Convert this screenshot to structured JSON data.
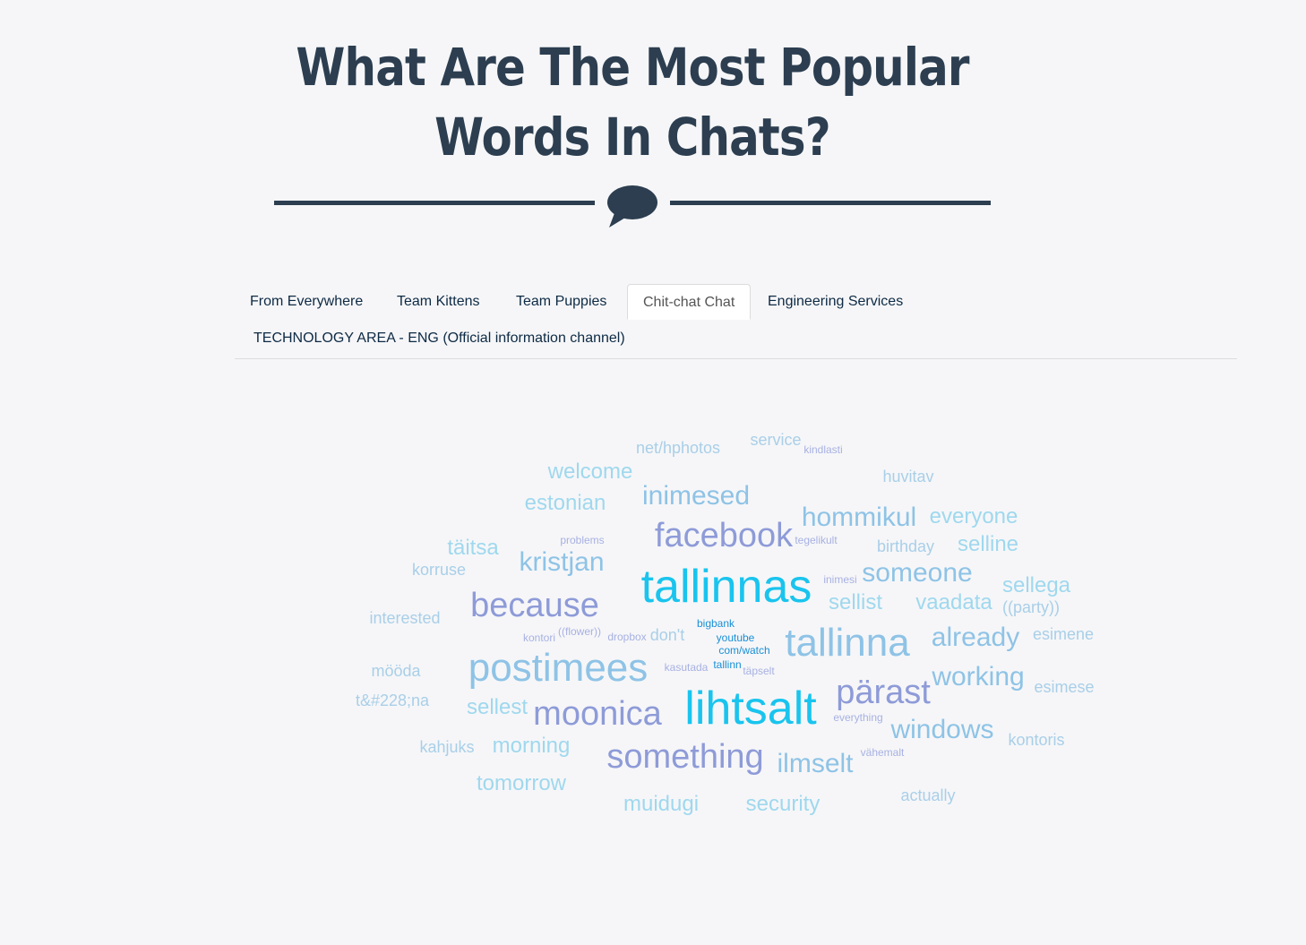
{
  "header": {
    "title_line1": "What Are The Most Popular",
    "title_line2": "Words In Chats?",
    "divider_icon": "speech-bubble-icon",
    "accent_color": "#2c3e50"
  },
  "tabs": [
    {
      "label": "From Everywhere",
      "active": false
    },
    {
      "label": "Team Kittens",
      "active": false
    },
    {
      "label": "Team Puppies",
      "active": false
    },
    {
      "label": "Chit-chat Chat",
      "active": true
    },
    {
      "label": "Engineering Services",
      "active": false
    },
    {
      "label": "TECHNOLOGY AREA - ENG (Official information channel)",
      "active": false
    }
  ],
  "word_cloud": {
    "colors": {
      "pale_blue": "#9fd8ee",
      "mid_blue": "#8ec3e6",
      "periwinkle": "#8e9bd8",
      "lavender": "#a7b1e2",
      "cyan": "#19c4ee",
      "deep_blue": "#1a8fd6"
    },
    "words": [
      {
        "text": "net/hphotos",
        "size": 18,
        "color": "#a9cfe8"
      },
      {
        "text": "service",
        "size": 18,
        "color": "#a9cfe8"
      },
      {
        "text": "kindlasti",
        "size": 12,
        "color": "#a7b1e2"
      },
      {
        "text": "welcome",
        "size": 24,
        "color": "#9fd8ee"
      },
      {
        "text": "huvitav",
        "size": 18,
        "color": "#a9cfe8"
      },
      {
        "text": "inimesed",
        "size": 30,
        "color": "#8ec3e6"
      },
      {
        "text": "estonian",
        "size": 24,
        "color": "#9fd8ee"
      },
      {
        "text": "hommikul",
        "size": 30,
        "color": "#8ec3e6"
      },
      {
        "text": "everyone",
        "size": 24,
        "color": "#9fd8ee"
      },
      {
        "text": "facebook",
        "size": 38,
        "color": "#8e9bd8"
      },
      {
        "text": "täitsa",
        "size": 24,
        "color": "#9fd8ee"
      },
      {
        "text": "problems",
        "size": 12,
        "color": "#a7b1e2"
      },
      {
        "text": "tegelikult",
        "size": 12,
        "color": "#a7b1e2"
      },
      {
        "text": "birthday",
        "size": 18,
        "color": "#a9cfe8"
      },
      {
        "text": "selline",
        "size": 24,
        "color": "#9fd8ee"
      },
      {
        "text": "korruse",
        "size": 18,
        "color": "#a9cfe8"
      },
      {
        "text": "kristjan",
        "size": 30,
        "color": "#8ec3e6"
      },
      {
        "text": "tallinnas",
        "size": 52,
        "color": "#19c4ee"
      },
      {
        "text": "inimesi",
        "size": 12,
        "color": "#a7b1e2"
      },
      {
        "text": "someone",
        "size": 30,
        "color": "#8ec3e6"
      },
      {
        "text": "sellega",
        "size": 24,
        "color": "#9fd8ee"
      },
      {
        "text": "because",
        "size": 38,
        "color": "#8e9bd8"
      },
      {
        "text": "sellist",
        "size": 24,
        "color": "#9fd8ee"
      },
      {
        "text": "vaadata",
        "size": 24,
        "color": "#9fd8ee"
      },
      {
        "text": "((party))",
        "size": 18,
        "color": "#a9cfe8"
      },
      {
        "text": "interested",
        "size": 18,
        "color": "#a9cfe8"
      },
      {
        "text": "bigbank",
        "size": 12,
        "color": "#1a8fd6"
      },
      {
        "text": "kontori",
        "size": 12,
        "color": "#a7b1e2"
      },
      {
        "text": "((flower))",
        "size": 12,
        "color": "#a7b1e2"
      },
      {
        "text": "dropbox",
        "size": 12,
        "color": "#a7b1e2"
      },
      {
        "text": "don't",
        "size": 18,
        "color": "#a9cfe8"
      },
      {
        "text": "youtube",
        "size": 12,
        "color": "#1a8fd6"
      },
      {
        "text": "com/watch",
        "size": 12,
        "color": "#1a8fd6"
      },
      {
        "text": "tallinna",
        "size": 44,
        "color": "#8ec3e6"
      },
      {
        "text": "already",
        "size": 30,
        "color": "#8ec3e6"
      },
      {
        "text": "esimene",
        "size": 18,
        "color": "#a9cfe8"
      },
      {
        "text": "mööda",
        "size": 18,
        "color": "#a9cfe8"
      },
      {
        "text": "postimees",
        "size": 44,
        "color": "#8ec3e6"
      },
      {
        "text": "kasutada",
        "size": 12,
        "color": "#a7b1e2"
      },
      {
        "text": "tallinn",
        "size": 12,
        "color": "#1a8fd6"
      },
      {
        "text": "täpselt",
        "size": 12,
        "color": "#a7b1e2"
      },
      {
        "text": "working",
        "size": 30,
        "color": "#8ec3e6"
      },
      {
        "text": "esimese",
        "size": 18,
        "color": "#a9cfe8"
      },
      {
        "text": "t&#228;na",
        "size": 18,
        "color": "#a9cfe8"
      },
      {
        "text": "pärast",
        "size": 38,
        "color": "#8e9bd8"
      },
      {
        "text": "sellest",
        "size": 24,
        "color": "#9fd8ee"
      },
      {
        "text": "moonica",
        "size": 38,
        "color": "#8e9bd8"
      },
      {
        "text": "lihtsalt",
        "size": 52,
        "color": "#19c4ee"
      },
      {
        "text": "everything",
        "size": 12,
        "color": "#a7b1e2"
      },
      {
        "text": "windows",
        "size": 30,
        "color": "#8ec3e6"
      },
      {
        "text": "kontoris",
        "size": 18,
        "color": "#a9cfe8"
      },
      {
        "text": "kahjuks",
        "size": 18,
        "color": "#a9cfe8"
      },
      {
        "text": "morning",
        "size": 24,
        "color": "#9fd8ee"
      },
      {
        "text": "vähemalt",
        "size": 12,
        "color": "#a7b1e2"
      },
      {
        "text": "something",
        "size": 38,
        "color": "#8e9bd8"
      },
      {
        "text": "ilmselt",
        "size": 30,
        "color": "#8ec3e6"
      },
      {
        "text": "tomorrow",
        "size": 24,
        "color": "#9fd8ee"
      },
      {
        "text": "actually",
        "size": 18,
        "color": "#a9cfe8"
      },
      {
        "text": "muidugi",
        "size": 24,
        "color": "#9fd8ee"
      },
      {
        "text": "security",
        "size": 24,
        "color": "#9fd8ee"
      }
    ]
  }
}
